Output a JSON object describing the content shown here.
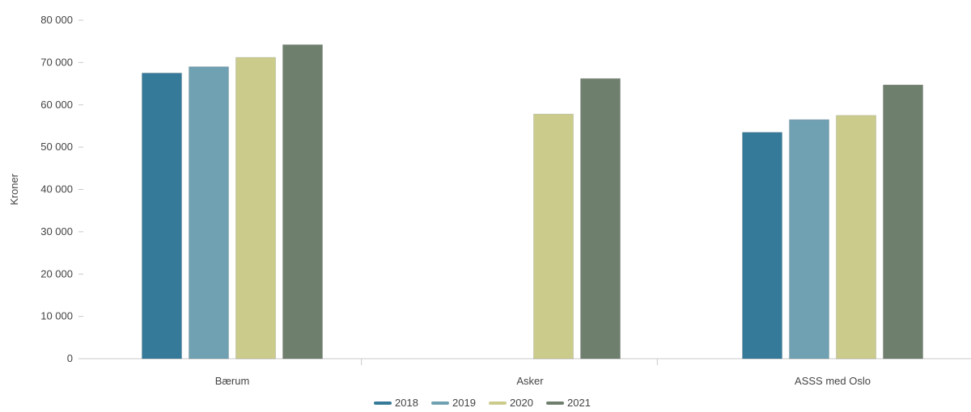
{
  "chart_data": {
    "type": "bar",
    "title": "",
    "xlabel": "",
    "ylabel": "Kroner",
    "ylim": [
      0,
      80000
    ],
    "y_ticks": [
      0,
      10000,
      20000,
      30000,
      40000,
      50000,
      60000,
      70000,
      80000
    ],
    "y_tick_labels": [
      "0",
      "10 000",
      "20 000",
      "30 000",
      "40 000",
      "50 000",
      "60 000",
      "70 000",
      "80 000"
    ],
    "categories": [
      "Bærum",
      "Asker",
      "ASSS med Oslo"
    ],
    "series": [
      {
        "name": "2018",
        "color": "#357a99",
        "values": [
          67500,
          null,
          53500
        ]
      },
      {
        "name": "2019",
        "color": "#70a1b2",
        "values": [
          69000,
          null,
          56500
        ]
      },
      {
        "name": "2020",
        "color": "#cbcc8c",
        "values": [
          71200,
          57800,
          57500
        ]
      },
      {
        "name": "2021",
        "color": "#6f7f6d",
        "values": [
          74200,
          66200,
          64700
        ]
      }
    ],
    "grid": false,
    "legend_position": "bottom"
  }
}
